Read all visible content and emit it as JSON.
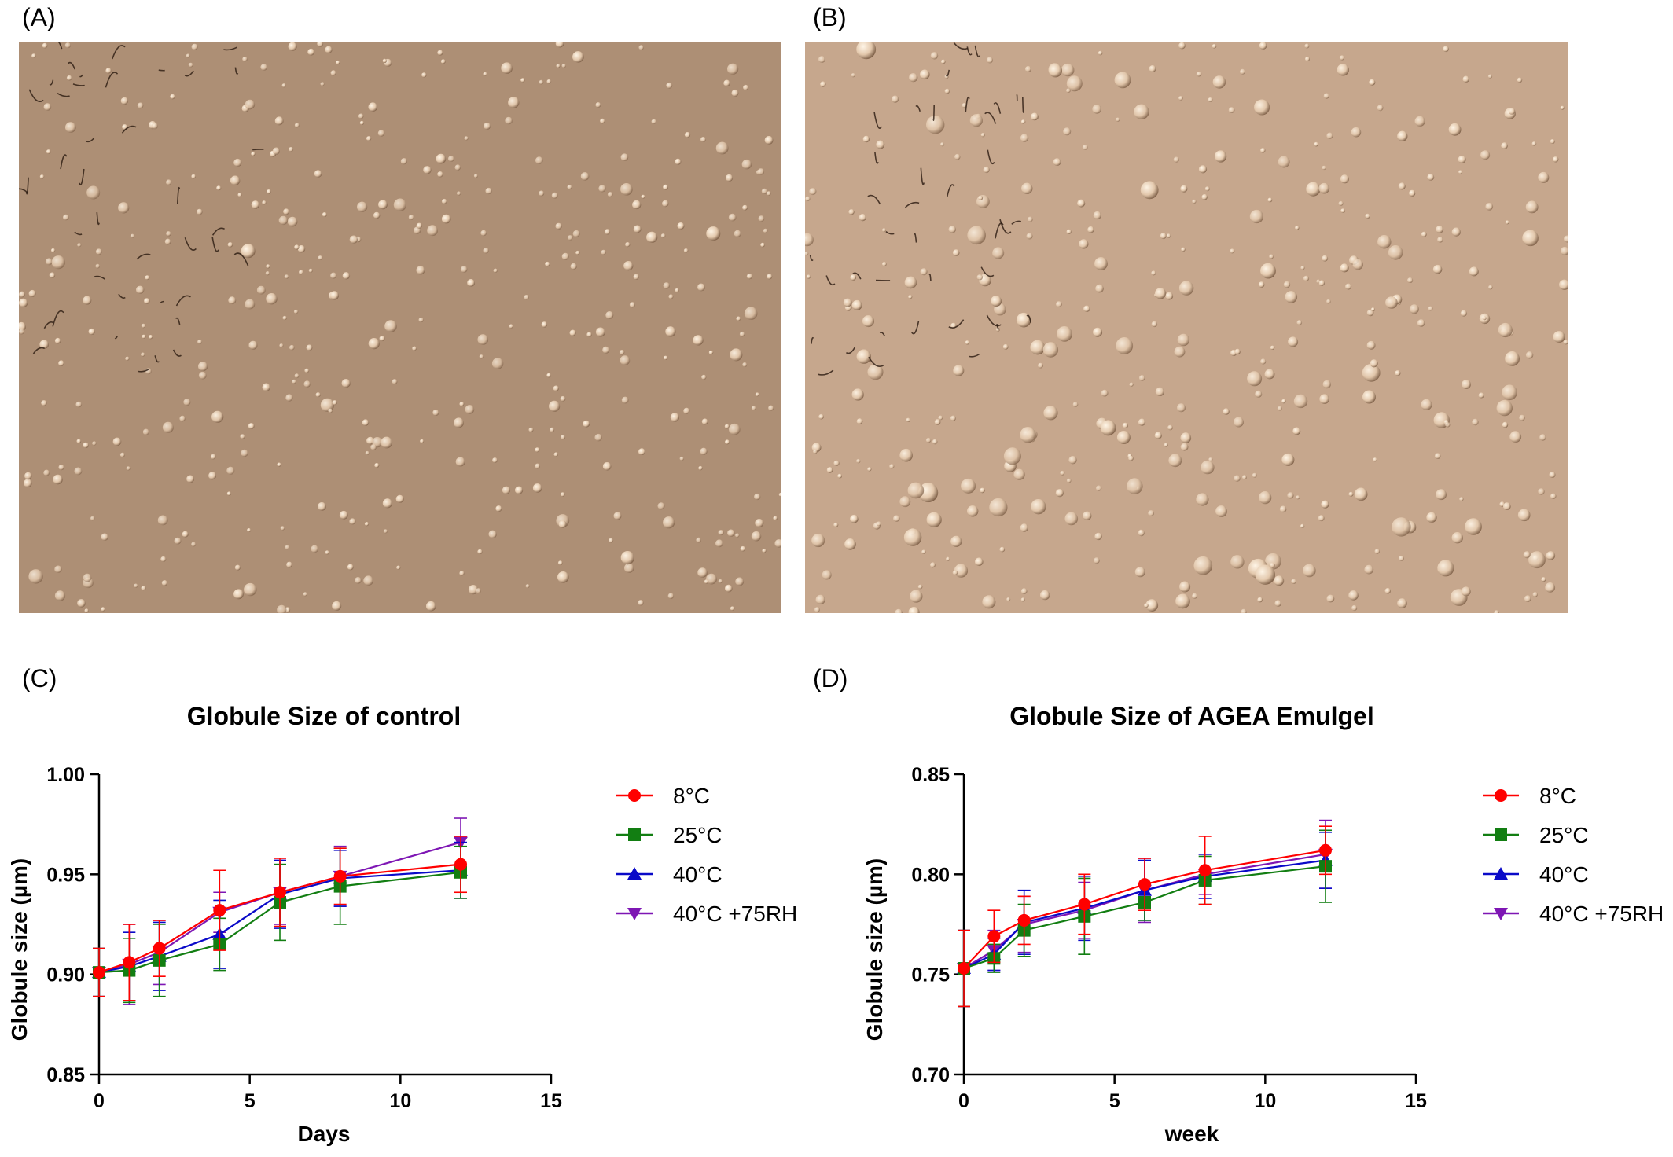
{
  "panels": {
    "a": {
      "letter": "(A)"
    },
    "b": {
      "letter": "(B)"
    },
    "c": {
      "letter": "(C)"
    },
    "d": {
      "letter": "(D)"
    }
  },
  "colors": {
    "micro_a_bg": "#b5957a",
    "micro_b_bg": "#cfae93",
    "red": "#ff0000",
    "green": "#127e12",
    "blue": "#0a0ac8",
    "purple": "#7e16b4"
  },
  "chart_data": [
    {
      "type": "line",
      "title": "Globule Size of control",
      "xlabel": "Days",
      "ylabel": "Globule size (µm)",
      "xlim": [
        0,
        15
      ],
      "ylim": [
        0.85,
        1.0
      ],
      "xticks": [
        0,
        5,
        10,
        15
      ],
      "yticks": [
        0.85,
        0.9,
        0.95,
        1.0
      ],
      "xtick_labels": [
        "0",
        "5",
        "10",
        "15"
      ],
      "ytick_labels": [
        "0.85",
        "0.90",
        "0.95",
        "1.00"
      ],
      "legend_position": "right",
      "x": [
        0,
        1,
        2,
        4,
        6,
        8,
        12
      ],
      "series": [
        {
          "name": "8°C",
          "color": "#ff0000",
          "marker": "circle",
          "values": [
            0.901,
            0.906,
            0.913,
            0.932,
            0.941,
            0.949,
            0.955
          ],
          "errors": [
            0.012,
            0.019,
            0.014,
            0.02,
            0.017,
            0.014,
            0.014
          ]
        },
        {
          "name": "25°C",
          "color": "#127e12",
          "marker": "square",
          "values": [
            0.901,
            0.902,
            0.907,
            0.915,
            0.936,
            0.944,
            0.951
          ],
          "errors": [
            0.012,
            0.016,
            0.018,
            0.013,
            0.019,
            0.019,
            0.013
          ]
        },
        {
          "name": "40°C",
          "color": "#0a0ac8",
          "marker": "triangle-up",
          "values": [
            0.901,
            0.904,
            0.909,
            0.92,
            0.94,
            0.948,
            0.952
          ],
          "errors": [
            0.012,
            0.017,
            0.017,
            0.017,
            0.017,
            0.014,
            0.014
          ]
        },
        {
          "name": "40°C +75RH",
          "color": "#7e16b4",
          "marker": "triangle-down",
          "values": [
            0.901,
            0.905,
            0.911,
            0.931,
            0.941,
            0.949,
            0.966
          ],
          "errors": [
            0.012,
            0.02,
            0.016,
            0.01,
            0.016,
            0.015,
            0.012
          ]
        }
      ]
    },
    {
      "type": "line",
      "title": "Globule Size of AGEA Emulgel",
      "xlabel": "week",
      "ylabel": "Globule size (µm)",
      "xlim": [
        0,
        15
      ],
      "ylim": [
        0.7,
        0.85
      ],
      "xticks": [
        0,
        5,
        10,
        15
      ],
      "yticks": [
        0.7,
        0.75,
        0.8,
        0.85
      ],
      "xtick_labels": [
        "0",
        "5",
        "10",
        "15"
      ],
      "ytick_labels": [
        "0.70",
        "0.75",
        "0.80",
        "0.85"
      ],
      "legend_position": "right",
      "x": [
        0,
        1,
        2,
        4,
        6,
        8,
        12
      ],
      "series": [
        {
          "name": "8°C",
          "color": "#ff0000",
          "marker": "circle",
          "values": [
            0.753,
            0.769,
            0.777,
            0.785,
            0.795,
            0.802,
            0.812
          ],
          "errors": [
            0.019,
            0.013,
            0.012,
            0.015,
            0.013,
            0.017,
            0.012
          ]
        },
        {
          "name": "25°C",
          "color": "#127e12",
          "marker": "square",
          "values": [
            0.753,
            0.758,
            0.772,
            0.779,
            0.786,
            0.797,
            0.804
          ],
          "errors": [
            0.019,
            0.007,
            0.013,
            0.019,
            0.009,
            0.012,
            0.018
          ]
        },
        {
          "name": "40°C",
          "color": "#0a0ac8",
          "marker": "triangle-up",
          "values": [
            0.753,
            0.76,
            0.776,
            0.783,
            0.792,
            0.799,
            0.807
          ],
          "errors": [
            0.019,
            0.008,
            0.016,
            0.016,
            0.015,
            0.011,
            0.014
          ]
        },
        {
          "name": "40°C +75RH",
          "color": "#7e16b4",
          "marker": "triangle-down",
          "values": [
            0.753,
            0.762,
            0.775,
            0.782,
            0.792,
            0.8,
            0.81
          ],
          "errors": [
            0.019,
            0.01,
            0.014,
            0.014,
            0.016,
            0.01,
            0.017
          ]
        }
      ]
    }
  ]
}
